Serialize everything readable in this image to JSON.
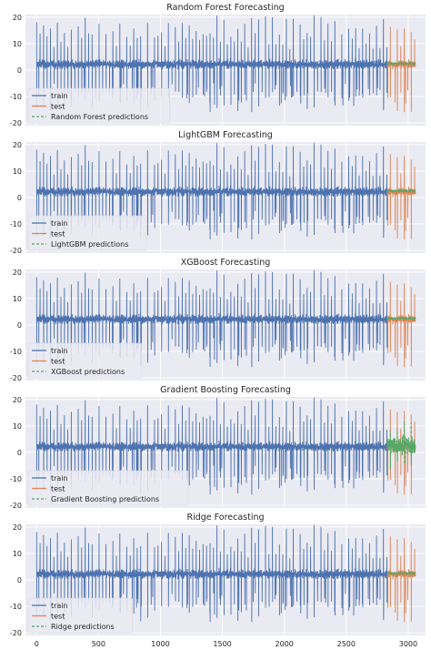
{
  "colors": {
    "train": "#4c72b0",
    "test": "#dd8452",
    "prediction": "#55a868",
    "panel_bg": "#eaeaf2",
    "grid": "#ffffff"
  },
  "chart_data": [
    {
      "type": "line",
      "title": "Random Forest Forecasting",
      "xlim": [
        -90,
        3140
      ],
      "ylim": [
        -21,
        21
      ],
      "xticks": [
        0,
        500,
        1000,
        1500,
        2000,
        2500,
        3000
      ],
      "yticks": [
        -20,
        -10,
        0,
        10,
        20
      ],
      "grid": true,
      "legend_position": "lower-left",
      "series": [
        {
          "name": "train",
          "x_range": [
            0,
            2830
          ],
          "style": "solid"
        },
        {
          "name": "test",
          "x_range": [
            2830,
            3060
          ],
          "style": "solid"
        },
        {
          "name": "Random Forest predictions",
          "x_range": [
            2830,
            3060
          ],
          "style": "dashed"
        }
      ]
    },
    {
      "type": "line",
      "title": "LightGBM Forecasting",
      "xlim": [
        -90,
        3140
      ],
      "ylim": [
        -21,
        21
      ],
      "xticks": [
        0,
        500,
        1000,
        1500,
        2000,
        2500,
        3000
      ],
      "yticks": [
        -20,
        -10,
        0,
        10,
        20
      ],
      "grid": true,
      "legend_position": "lower-left",
      "series": [
        {
          "name": "train",
          "x_range": [
            0,
            2830
          ],
          "style": "solid"
        },
        {
          "name": "test",
          "x_range": [
            2830,
            3060
          ],
          "style": "solid"
        },
        {
          "name": "LightGBM predictions",
          "x_range": [
            2830,
            3060
          ],
          "style": "dashed"
        }
      ]
    },
    {
      "type": "line",
      "title": "XGBoost Forecasting",
      "xlim": [
        -90,
        3140
      ],
      "ylim": [
        -21,
        21
      ],
      "xticks": [
        0,
        500,
        1000,
        1500,
        2000,
        2500,
        3000
      ],
      "yticks": [
        -20,
        -10,
        0,
        10,
        20
      ],
      "grid": true,
      "legend_position": "lower-left",
      "series": [
        {
          "name": "train",
          "x_range": [
            0,
            2830
          ],
          "style": "solid"
        },
        {
          "name": "test",
          "x_range": [
            2830,
            3060
          ],
          "style": "solid"
        },
        {
          "name": "XGBoost predictions",
          "x_range": [
            2830,
            3060
          ],
          "style": "dashed"
        }
      ]
    },
    {
      "type": "line",
      "title": "Gradient Boosting Forecasting",
      "xlim": [
        -90,
        3140
      ],
      "ylim": [
        -21,
        21
      ],
      "xticks": [
        0,
        500,
        1000,
        1500,
        2000,
        2500,
        3000
      ],
      "yticks": [
        -20,
        -10,
        0,
        10,
        20
      ],
      "grid": true,
      "legend_position": "lower-left",
      "series": [
        {
          "name": "train",
          "x_range": [
            0,
            2830
          ],
          "style": "solid"
        },
        {
          "name": "test",
          "x_range": [
            2830,
            3060
          ],
          "style": "solid"
        },
        {
          "name": "Gradient Boosting predictions",
          "x_range": [
            2830,
            3060
          ],
          "style": "dashed"
        }
      ]
    },
    {
      "type": "line",
      "title": "Ridge Forecasting",
      "xlim": [
        -90,
        3140
      ],
      "ylim": [
        -21,
        21
      ],
      "xticks": [
        0,
        500,
        1000,
        1500,
        2000,
        2500,
        3000
      ],
      "yticks": [
        -20,
        -10,
        0,
        10,
        20
      ],
      "grid": true,
      "legend_position": "lower-left",
      "series": [
        {
          "name": "train",
          "x_range": [
            0,
            2830
          ],
          "style": "solid"
        },
        {
          "name": "test",
          "x_range": [
            2830,
            3060
          ],
          "style": "solid"
        },
        {
          "name": "Ridge predictions",
          "x_range": [
            2830,
            3060
          ],
          "style": "dashed"
        }
      ]
    }
  ]
}
